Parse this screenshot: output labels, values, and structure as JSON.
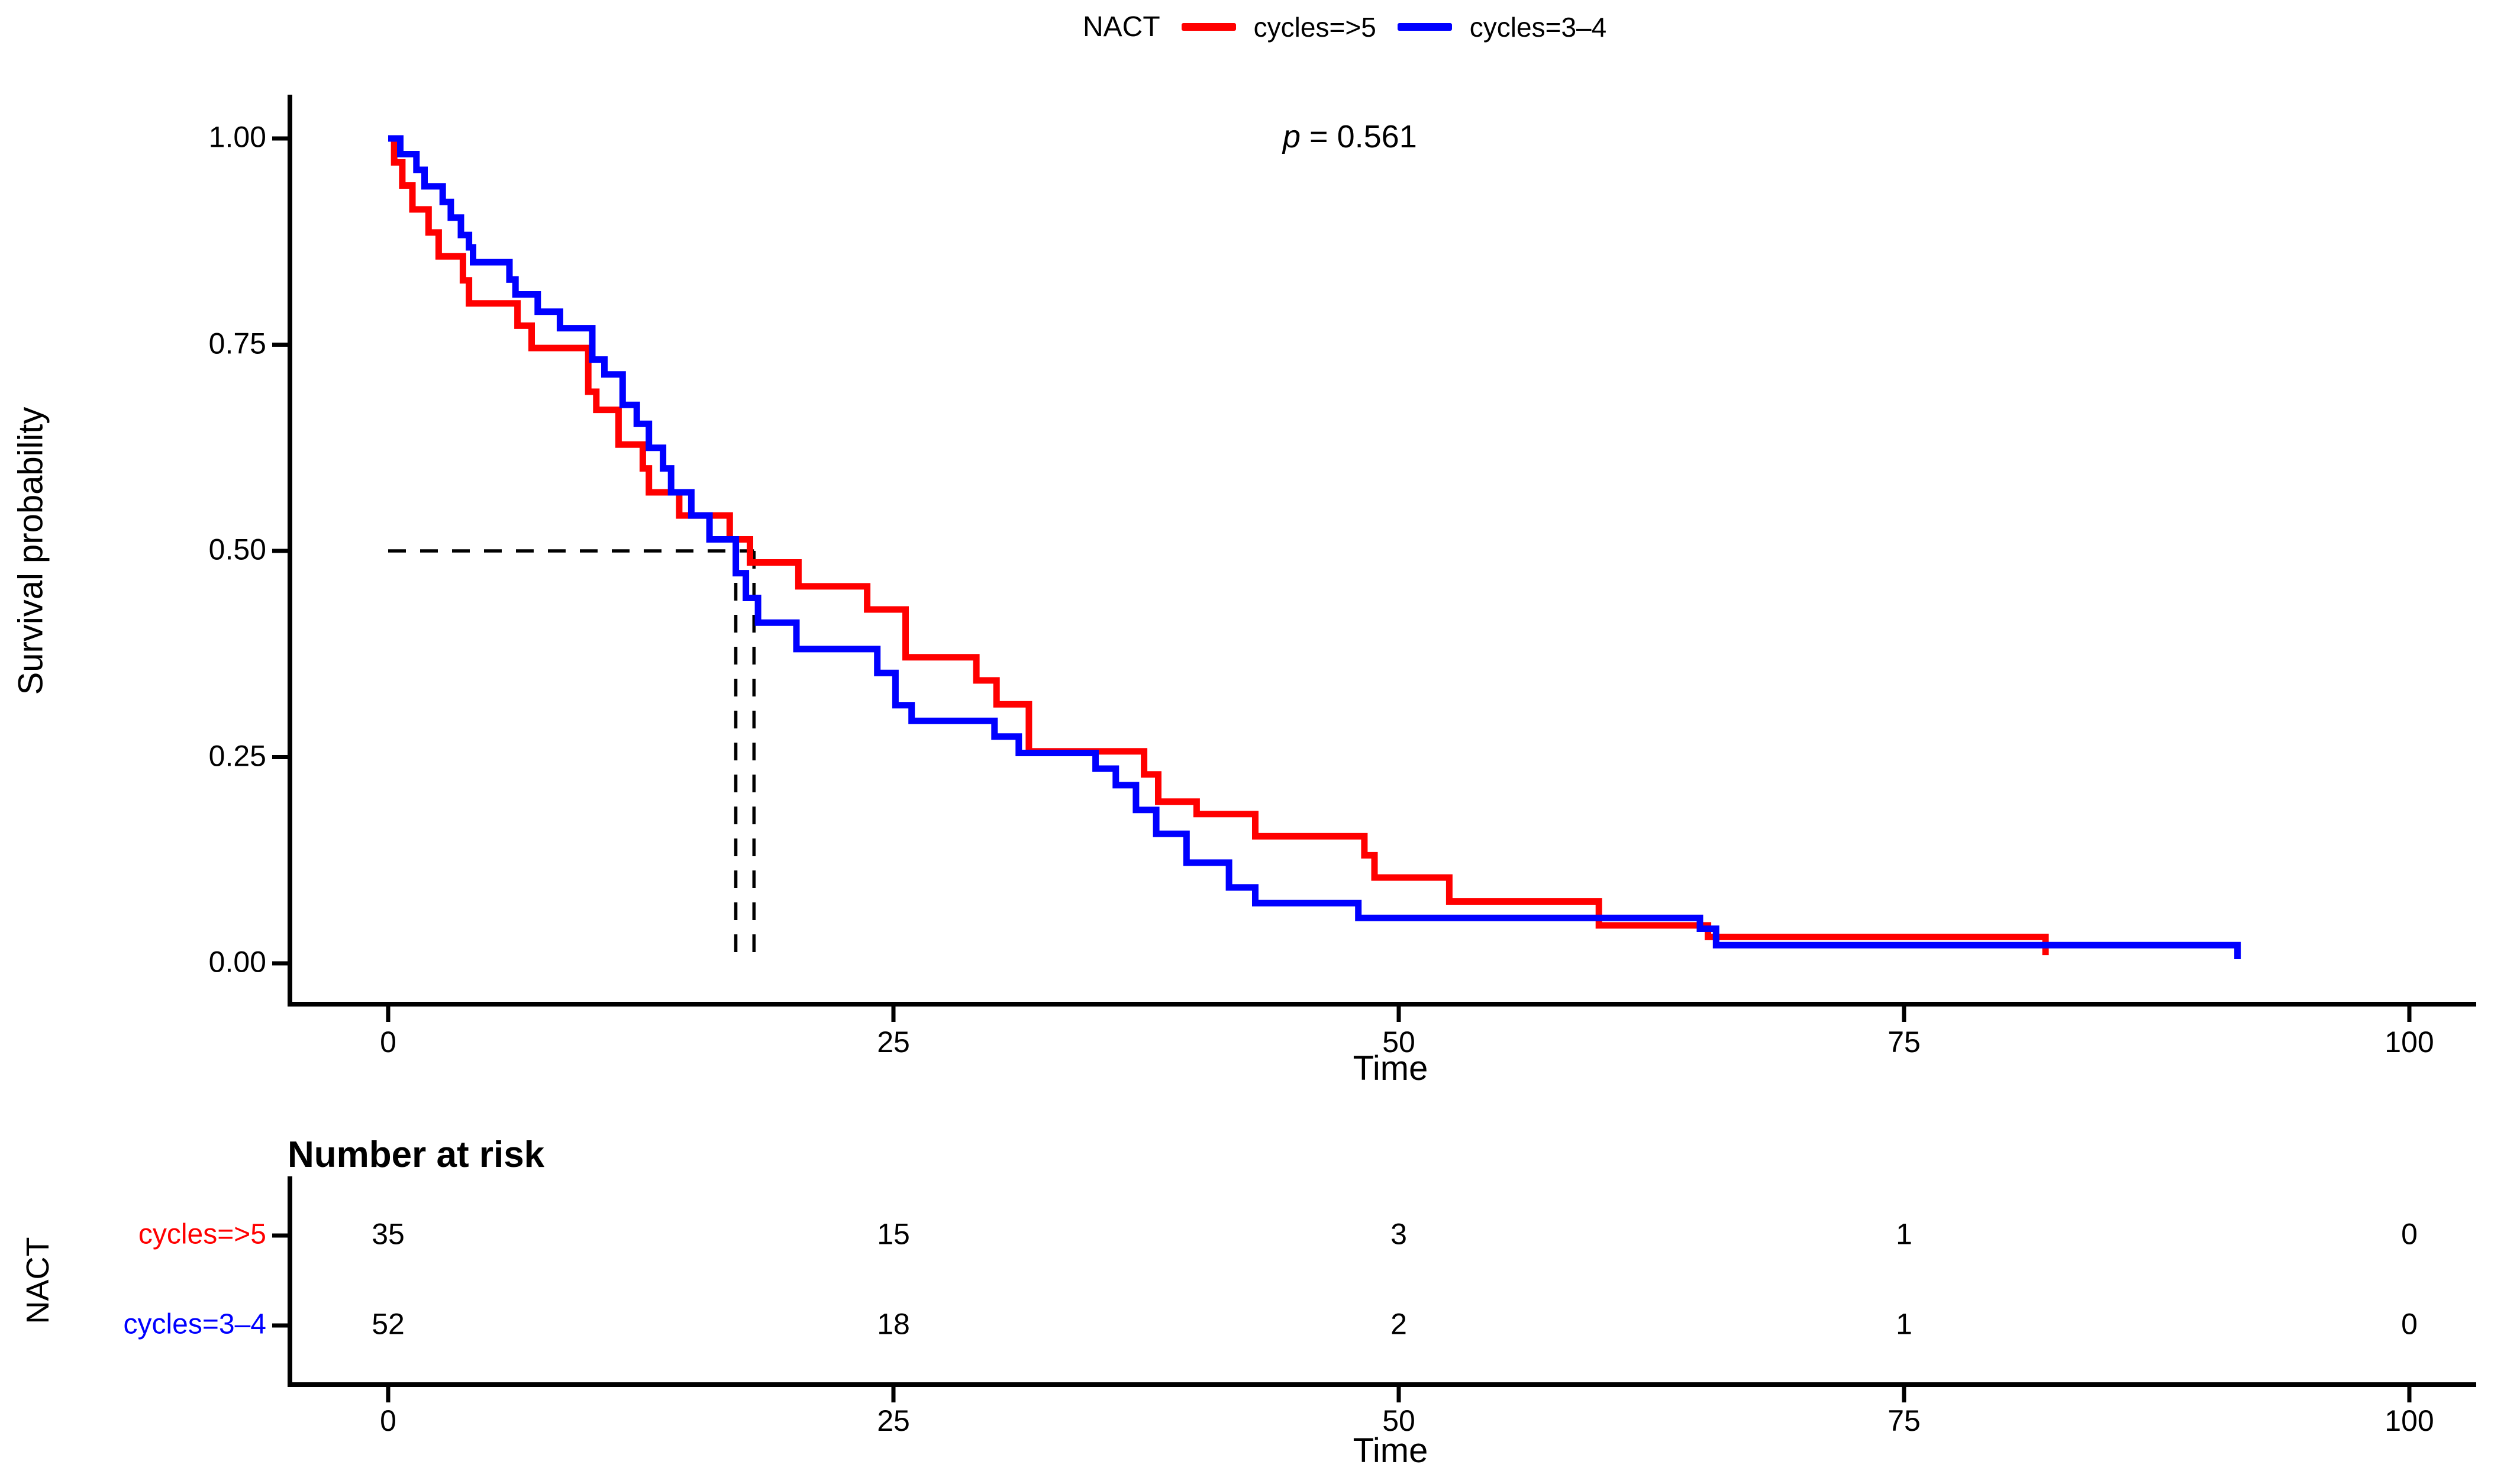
{
  "legend": {
    "title": "NACT",
    "items": [
      {
        "label": "cycles=>5",
        "color": "#FF0000"
      },
      {
        "label": "cycles=3–4",
        "color": "#0000FF"
      }
    ]
  },
  "stats": {
    "p_symbol": "p",
    "p_rest": " = 0.561"
  },
  "axes": {
    "y_title": "Survival probability",
    "x_title": "Time",
    "y_ticks": [
      "1.00",
      "0.75",
      "0.50",
      "0.25",
      "0.00"
    ],
    "x_ticks": [
      "0",
      "25",
      "50",
      "75",
      "100"
    ]
  },
  "risk_table": {
    "title": "Number at risk",
    "group_axis_label": "NACT",
    "x_title": "Time",
    "x_ticks": [
      "0",
      "25",
      "50",
      "75",
      "100"
    ],
    "rows": [
      {
        "label": "cycles=>5",
        "color": "#FF0000",
        "values": [
          "35",
          "15",
          "3",
          "1",
          "0"
        ]
      },
      {
        "label": "cycles=3–4",
        "color": "#0000FF",
        "values": [
          "52",
          "18",
          "2",
          "1",
          "0"
        ]
      }
    ]
  },
  "chart_data": {
    "type": "line",
    "subtype": "kaplan-meier-step",
    "title": "",
    "xlabel": "Time",
    "ylabel": "Survival probability",
    "xlim": [
      0,
      100
    ],
    "ylim": [
      0,
      1
    ],
    "x_tick_values": [
      0,
      25,
      50,
      75,
      100
    ],
    "y_tick_values": [
      0,
      0.25,
      0.5,
      0.75,
      1.0
    ],
    "grid": false,
    "legend_position": "top",
    "p_value": 0.561,
    "median_survival": {
      "y": 0.5,
      "times": [
        17.2,
        18.1
      ],
      "line_style": "dashed"
    },
    "series": [
      {
        "name": "cycles=>5",
        "color": "#FF0000",
        "steps": [
          [
            0,
            1.0
          ],
          [
            0.3,
            0.971
          ],
          [
            0.7,
            0.943
          ],
          [
            1.2,
            0.914
          ],
          [
            2.0,
            0.886
          ],
          [
            2.5,
            0.857
          ],
          [
            3.7,
            0.828
          ],
          [
            4.0,
            0.8
          ],
          [
            6.4,
            0.773
          ],
          [
            7.1,
            0.746
          ],
          [
            9.9,
            0.693
          ],
          [
            10.3,
            0.671
          ],
          [
            11.4,
            0.629
          ],
          [
            12.6,
            0.6
          ],
          [
            12.9,
            0.571
          ],
          [
            14.4,
            0.543
          ],
          [
            16.9,
            0.514
          ],
          [
            17.9,
            0.486
          ],
          [
            20.3,
            0.457
          ],
          [
            23.7,
            0.429
          ],
          [
            25.6,
            0.371
          ],
          [
            29.1,
            0.343
          ],
          [
            30.1,
            0.314
          ],
          [
            31.7,
            0.257
          ],
          [
            37.4,
            0.229
          ],
          [
            38.1,
            0.196
          ],
          [
            40.0,
            0.181
          ],
          [
            42.9,
            0.154
          ],
          [
            48.3,
            0.131
          ],
          [
            48.8,
            0.104
          ],
          [
            52.5,
            0.075
          ],
          [
            59.9,
            0.046
          ],
          [
            65.3,
            0.032
          ],
          [
            82.0,
            0.01
          ]
        ]
      },
      {
        "name": "cycles=3–4",
        "color": "#0000FF",
        "steps": [
          [
            0,
            1.0
          ],
          [
            0.6,
            0.981
          ],
          [
            1.4,
            0.962
          ],
          [
            1.8,
            0.942
          ],
          [
            2.7,
            0.923
          ],
          [
            3.1,
            0.904
          ],
          [
            3.6,
            0.883
          ],
          [
            4.0,
            0.868
          ],
          [
            4.2,
            0.85
          ],
          [
            6.0,
            0.829
          ],
          [
            6.3,
            0.811
          ],
          [
            7.4,
            0.79
          ],
          [
            8.5,
            0.77
          ],
          [
            10.1,
            0.732
          ],
          [
            10.7,
            0.714
          ],
          [
            11.6,
            0.677
          ],
          [
            12.3,
            0.654
          ],
          [
            12.9,
            0.625
          ],
          [
            13.6,
            0.6
          ],
          [
            14.0,
            0.571
          ],
          [
            15.0,
            0.543
          ],
          [
            15.9,
            0.514
          ],
          [
            17.2,
            0.473
          ],
          [
            17.7,
            0.443
          ],
          [
            18.3,
            0.413
          ],
          [
            20.2,
            0.381
          ],
          [
            24.2,
            0.352
          ],
          [
            25.1,
            0.313
          ],
          [
            25.9,
            0.294
          ],
          [
            30.0,
            0.275
          ],
          [
            31.2,
            0.255
          ],
          [
            35.0,
            0.236
          ],
          [
            36.0,
            0.216
          ],
          [
            37.0,
            0.186
          ],
          [
            38.0,
            0.157
          ],
          [
            39.5,
            0.122
          ],
          [
            41.6,
            0.092
          ],
          [
            42.9,
            0.073
          ],
          [
            48.0,
            0.055
          ],
          [
            64.9,
            0.042
          ],
          [
            65.7,
            0.022
          ],
          [
            91.5,
            0.005
          ]
        ]
      }
    ],
    "number_at_risk": {
      "times": [
        0,
        25,
        50,
        75,
        100
      ],
      "series": [
        {
          "name": "cycles=>5",
          "counts": [
            35,
            15,
            3,
            1,
            0
          ]
        },
        {
          "name": "cycles=3–4",
          "counts": [
            52,
            18,
            2,
            1,
            0
          ]
        }
      ]
    }
  }
}
